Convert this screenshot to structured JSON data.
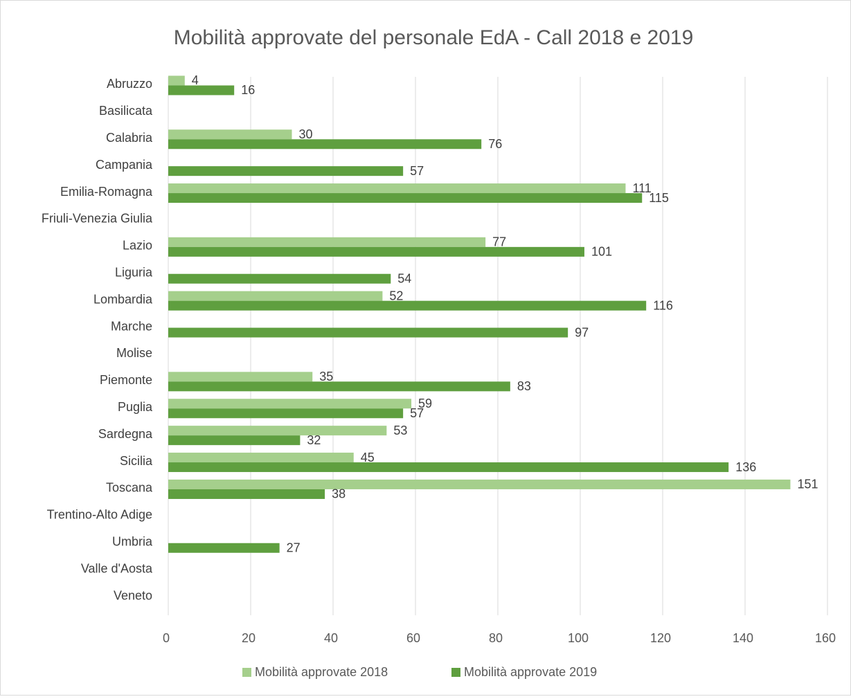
{
  "chart_data": {
    "type": "bar",
    "orientation": "horizontal",
    "title": "Mobilità approvate del personale EdA - Call 2018 e 2019",
    "categories": [
      "Abruzzo",
      "Basilicata",
      "Calabria",
      "Campania",
      "Emilia-Romagna",
      "Friuli-Venezia Giulia",
      "Lazio",
      "Liguria",
      "Lombardia",
      "Marche",
      "Molise",
      "Piemonte",
      "Puglia",
      "Sardegna",
      "Sicilia",
      "Toscana",
      "Trentino-Alto Adige",
      "Umbria",
      "Valle d'Aosta",
      "Veneto"
    ],
    "series": [
      {
        "name": "Mobilità approvate 2018",
        "color": "#a5cf8c",
        "values": [
          4,
          null,
          30,
          null,
          111,
          null,
          77,
          null,
          52,
          null,
          null,
          35,
          59,
          53,
          45,
          151,
          null,
          null,
          null,
          null
        ]
      },
      {
        "name": "Mobilità approvate 2019",
        "color": "#5f9f3f",
        "values": [
          16,
          null,
          76,
          57,
          115,
          null,
          101,
          54,
          116,
          97,
          null,
          83,
          57,
          32,
          136,
          38,
          null,
          27,
          null,
          null
        ]
      }
    ],
    "xlim": [
      0,
      160
    ],
    "xticks": [
      0,
      20,
      40,
      60,
      80,
      100,
      120,
      140,
      160
    ],
    "grid": true,
    "legend": "bottom"
  }
}
